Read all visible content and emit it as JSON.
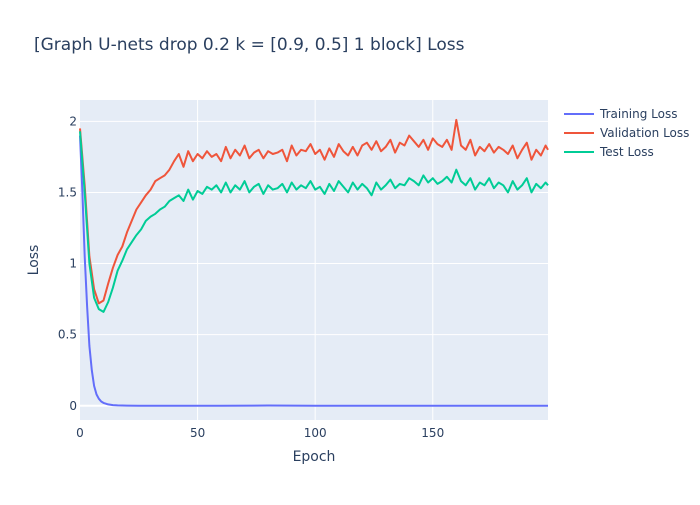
{
  "chart_data": {
    "type": "line",
    "title": "[Graph U-nets drop 0.2 k = [0.9, 0.5] 1 block] Loss",
    "xlabel": "Epoch",
    "ylabel": "Loss",
    "xlim": [
      0,
      199
    ],
    "ylim": [
      -0.1,
      2.15
    ],
    "xticks": [
      0,
      50,
      100,
      150
    ],
    "yticks": [
      0,
      0.5,
      1,
      1.5,
      2
    ],
    "grid": true,
    "legend_position": "top-right",
    "plot_background": "#e5ecf6",
    "series": [
      {
        "name": "Training Loss",
        "color": "#636efa",
        "x": [
          0,
          1,
          2,
          3,
          4,
          5,
          6,
          7,
          8,
          9,
          10,
          12,
          14,
          16,
          18,
          20,
          25,
          30,
          40,
          60,
          80,
          100,
          120,
          140,
          160,
          180,
          199
        ],
        "values": [
          1.9,
          1.5,
          1.05,
          0.7,
          0.42,
          0.25,
          0.14,
          0.08,
          0.05,
          0.03,
          0.02,
          0.01,
          0.005,
          0.003,
          0.002,
          0.001,
          0.0,
          0.0,
          0.0,
          0.0,
          0.002,
          0.0,
          0.0,
          0.0,
          0.0,
          0.0,
          0.0
        ]
      },
      {
        "name": "Validation Loss",
        "color": "#ef553b",
        "x": [
          0,
          2,
          4,
          6,
          8,
          10,
          12,
          14,
          16,
          18,
          20,
          22,
          24,
          26,
          28,
          30,
          32,
          34,
          36,
          38,
          40,
          42,
          44,
          46,
          48,
          50,
          52,
          54,
          56,
          58,
          60,
          62,
          64,
          66,
          68,
          70,
          72,
          74,
          76,
          78,
          80,
          82,
          84,
          86,
          88,
          90,
          92,
          94,
          96,
          98,
          100,
          102,
          104,
          106,
          108,
          110,
          112,
          114,
          116,
          118,
          120,
          122,
          124,
          126,
          128,
          130,
          132,
          134,
          136,
          138,
          140,
          142,
          144,
          146,
          148,
          150,
          152,
          154,
          156,
          158,
          160,
          162,
          164,
          166,
          168,
          170,
          172,
          174,
          176,
          178,
          180,
          182,
          184,
          186,
          188,
          190,
          192,
          194,
          196,
          198,
          199
        ],
        "values": [
          1.95,
          1.55,
          1.05,
          0.82,
          0.72,
          0.74,
          0.86,
          0.97,
          1.06,
          1.12,
          1.22,
          1.3,
          1.38,
          1.43,
          1.48,
          1.52,
          1.58,
          1.6,
          1.62,
          1.66,
          1.72,
          1.77,
          1.68,
          1.79,
          1.72,
          1.77,
          1.74,
          1.79,
          1.75,
          1.77,
          1.72,
          1.82,
          1.74,
          1.8,
          1.76,
          1.83,
          1.74,
          1.78,
          1.8,
          1.74,
          1.79,
          1.77,
          1.78,
          1.8,
          1.72,
          1.83,
          1.76,
          1.8,
          1.79,
          1.84,
          1.77,
          1.8,
          1.73,
          1.81,
          1.75,
          1.84,
          1.79,
          1.76,
          1.82,
          1.76,
          1.83,
          1.85,
          1.8,
          1.86,
          1.79,
          1.82,
          1.87,
          1.78,
          1.85,
          1.83,
          1.9,
          1.86,
          1.82,
          1.87,
          1.8,
          1.88,
          1.84,
          1.82,
          1.87,
          1.8,
          2.01,
          1.83,
          1.8,
          1.87,
          1.76,
          1.82,
          1.79,
          1.84,
          1.78,
          1.82,
          1.8,
          1.77,
          1.83,
          1.74,
          1.8,
          1.85,
          1.73,
          1.8,
          1.76,
          1.83,
          1.8
        ]
      },
      {
        "name": "Test Loss",
        "color": "#00cc96",
        "x": [
          0,
          2,
          4,
          6,
          8,
          10,
          12,
          14,
          16,
          18,
          20,
          22,
          24,
          26,
          28,
          30,
          32,
          34,
          36,
          38,
          40,
          42,
          44,
          46,
          48,
          50,
          52,
          54,
          56,
          58,
          60,
          62,
          64,
          66,
          68,
          70,
          72,
          74,
          76,
          78,
          80,
          82,
          84,
          86,
          88,
          90,
          92,
          94,
          96,
          98,
          100,
          102,
          104,
          106,
          108,
          110,
          112,
          114,
          116,
          118,
          120,
          122,
          124,
          126,
          128,
          130,
          132,
          134,
          136,
          138,
          140,
          142,
          144,
          146,
          148,
          150,
          152,
          154,
          156,
          158,
          160,
          162,
          164,
          166,
          168,
          170,
          172,
          174,
          176,
          178,
          180,
          182,
          184,
          186,
          188,
          190,
          192,
          194,
          196,
          198,
          199
        ],
        "values": [
          1.93,
          1.5,
          1.0,
          0.76,
          0.68,
          0.66,
          0.73,
          0.83,
          0.95,
          1.02,
          1.1,
          1.15,
          1.2,
          1.24,
          1.3,
          1.33,
          1.35,
          1.38,
          1.4,
          1.44,
          1.46,
          1.48,
          1.44,
          1.52,
          1.45,
          1.51,
          1.49,
          1.54,
          1.52,
          1.55,
          1.5,
          1.57,
          1.5,
          1.55,
          1.52,
          1.58,
          1.5,
          1.54,
          1.56,
          1.49,
          1.55,
          1.52,
          1.53,
          1.56,
          1.5,
          1.57,
          1.52,
          1.55,
          1.53,
          1.58,
          1.52,
          1.54,
          1.49,
          1.56,
          1.51,
          1.58,
          1.54,
          1.5,
          1.57,
          1.52,
          1.56,
          1.53,
          1.48,
          1.57,
          1.52,
          1.55,
          1.59,
          1.53,
          1.56,
          1.55,
          1.6,
          1.58,
          1.55,
          1.62,
          1.57,
          1.6,
          1.56,
          1.58,
          1.61,
          1.57,
          1.66,
          1.58,
          1.55,
          1.6,
          1.52,
          1.57,
          1.55,
          1.6,
          1.53,
          1.57,
          1.55,
          1.5,
          1.58,
          1.52,
          1.55,
          1.6,
          1.5,
          1.56,
          1.53,
          1.57,
          1.55
        ]
      }
    ]
  }
}
